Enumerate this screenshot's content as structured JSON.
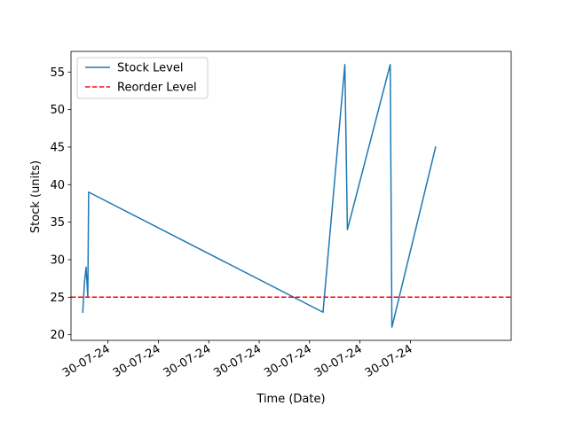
{
  "chart_data": {
    "type": "line",
    "xlabel": "Time (Date)",
    "ylabel": "Stock (units)",
    "ylim": [
      19.25,
      57.75
    ],
    "yticks": [
      20,
      25,
      30,
      35,
      40,
      45,
      50,
      55
    ],
    "xlim": [
      -0.7,
      25.5
    ],
    "xticks": [
      {
        "pos": 1.5,
        "label": "30-07-24"
      },
      {
        "pos": 4.5,
        "label": "30-07-24"
      },
      {
        "pos": 7.5,
        "label": "30-07-24"
      },
      {
        "pos": 10.5,
        "label": "30-07-24"
      },
      {
        "pos": 13.5,
        "label": "30-07-24"
      },
      {
        "pos": 16.5,
        "label": "30-07-24"
      },
      {
        "pos": 19.5,
        "label": "30-07-24"
      }
    ],
    "grid": false,
    "legend_position": "upper left",
    "series": [
      {
        "name": "Stock Level",
        "style": "solid",
        "color": "#1f77b4",
        "points": [
          {
            "x": 0.0,
            "y": 23
          },
          {
            "x": 0.1,
            "y": 27
          },
          {
            "x": 0.2,
            "y": 29
          },
          {
            "x": 0.3,
            "y": 25
          },
          {
            "x": 0.35,
            "y": 39
          },
          {
            "x": 14.3,
            "y": 23
          },
          {
            "x": 15.6,
            "y": 56
          },
          {
            "x": 15.75,
            "y": 34
          },
          {
            "x": 18.3,
            "y": 56
          },
          {
            "x": 18.4,
            "y": 21
          },
          {
            "x": 21.0,
            "y": 45
          }
        ]
      },
      {
        "name": "Reorder Level",
        "style": "dashed",
        "color": "#ff0000",
        "y": 25
      }
    ]
  }
}
